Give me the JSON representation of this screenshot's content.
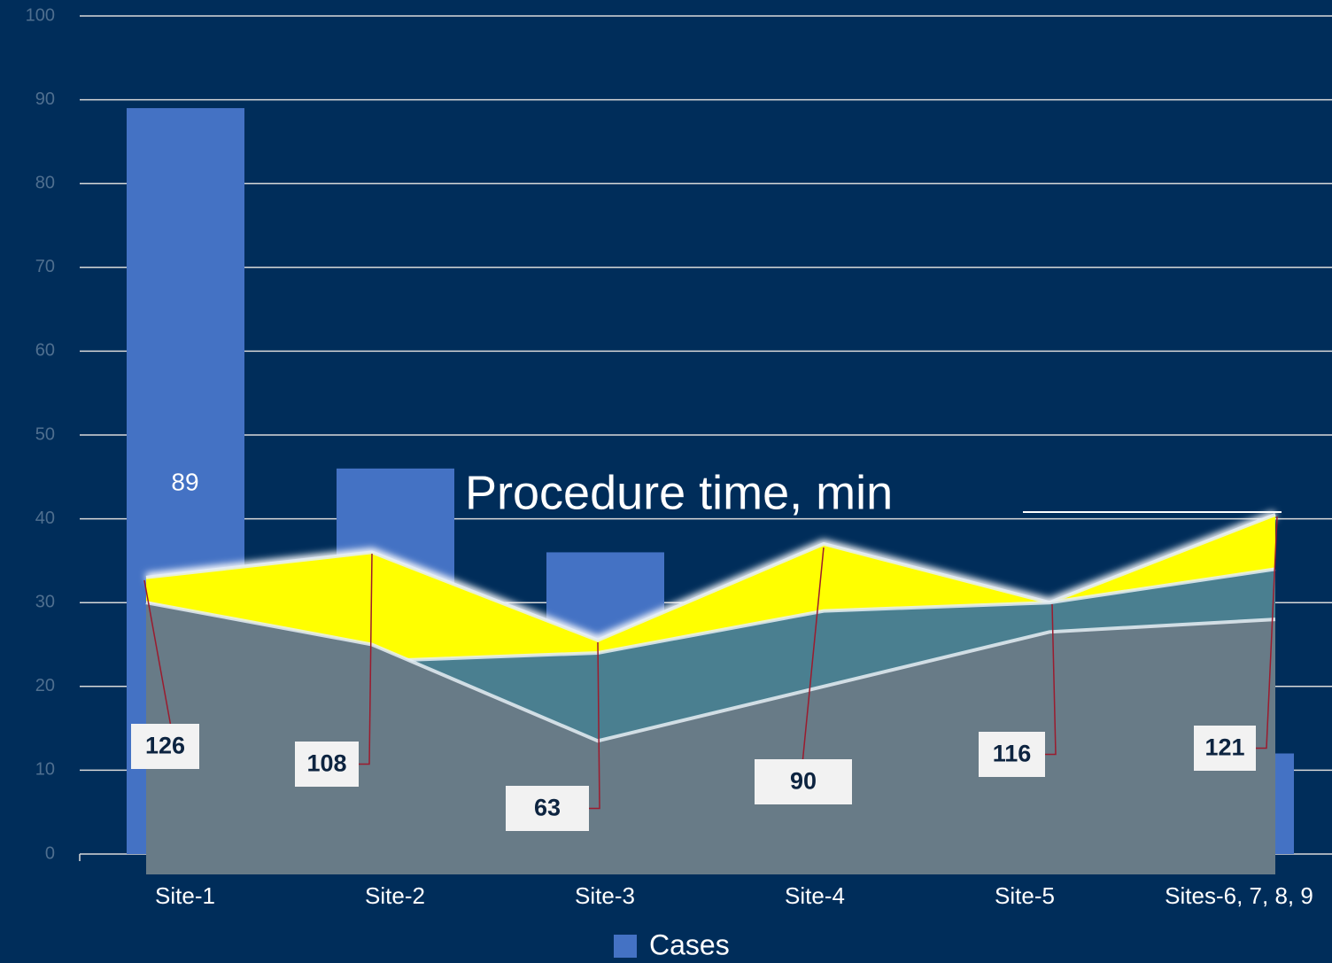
{
  "chart_data": {
    "type": "bar",
    "categories": [
      "Site-1",
      "Site-2",
      "Site-3",
      "Site-4",
      "Site-5",
      "Sites-6, 7, 8, 9"
    ],
    "series": [
      {
        "name": "Cases",
        "color": "#4472c4",
        "values": [
          89,
          46,
          36,
          null,
          null,
          12
        ]
      }
    ],
    "ylim": [
      0,
      100
    ],
    "yticks": [
      0,
      10,
      20,
      30,
      40,
      50,
      60,
      70,
      80,
      90,
      100
    ],
    "grid": true,
    "overlay": {
      "type": "area",
      "title": "Procedure time, min",
      "labels": [
        126,
        108,
        63,
        90,
        116,
        121
      ],
      "series": [
        {
          "color": "#ffff00",
          "values": [
            33,
            36,
            25.5,
            37,
            30,
            40.5
          ]
        },
        {
          "color": "#4a7f90",
          "values": [
            30,
            23,
            24,
            29,
            30,
            34
          ]
        },
        {
          "color": "#687b87",
          "values": [
            30,
            25,
            13.5,
            20,
            26.5,
            28
          ]
        }
      ]
    }
  }
}
